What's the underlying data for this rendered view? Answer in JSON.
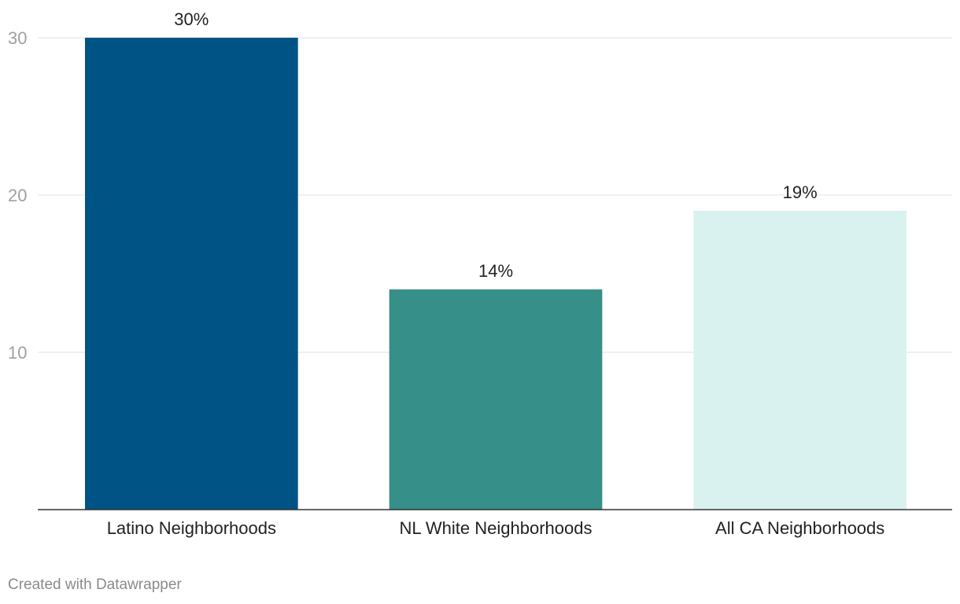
{
  "chart_data": {
    "type": "bar",
    "categories": [
      "Latino Neighborhoods",
      "NL White Neighborhoods",
      "All CA Neighborhoods"
    ],
    "values": [
      30,
      14,
      19
    ],
    "data_labels": [
      "30%",
      "14%",
      "19%"
    ],
    "colors": [
      "#005385",
      "#368f88",
      "#daf2ef"
    ],
    "title": "",
    "xlabel": "",
    "ylabel": "",
    "ylim": [
      0,
      30
    ],
    "yticks": [
      10,
      20,
      30
    ],
    "grid": true,
    "legend": "none"
  },
  "footer": {
    "credit": "Created with Datawrapper"
  }
}
